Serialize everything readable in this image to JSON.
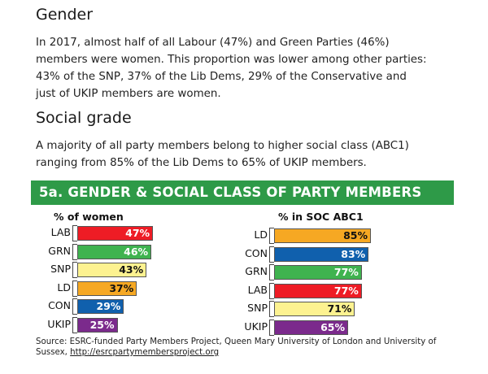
{
  "gender": {
    "heading": "Gender",
    "lines": [
      "In 2017, almost half of all Labour (47%) and Green Parties (46%)",
      "members were women. This proportion was lower among other parties:",
      "43% of the SNP, 37% of the Lib Dems, 29% of the Conservative and",
      "just  of UKIP members are women."
    ]
  },
  "social": {
    "heading": "Social grade",
    "lines": [
      "A majority of all party members belong to higher social class (ABC1)",
      "ranging from 85% of the Lib Dems to 65% of UKIP members."
    ]
  },
  "banner": "5a. GENDER & SOCIAL CLASS OF PARTY MEMBERS",
  "chart_data": [
    {
      "type": "bar",
      "orientation": "horizontal",
      "title": "% of women",
      "categories": [
        "LAB",
        "GRN",
        "SNP",
        "LD",
        "CON",
        "UKIP"
      ],
      "values": [
        47,
        46,
        43,
        37,
        29,
        25
      ],
      "value_labels": [
        "47%",
        "46%",
        "43%",
        "37%",
        "29%",
        "25%"
      ],
      "colors": [
        "#ee1c25",
        "#3fb34f",
        "#fdf290",
        "#f6a823",
        "#1060ad",
        "#7b2a8c"
      ],
      "label_colors": [
        "#ffffff",
        "#ffffff",
        "#111111",
        "#111111",
        "#ffffff",
        "#ffffff"
      ],
      "xlim": [
        0,
        50
      ],
      "grid": false
    },
    {
      "type": "bar",
      "orientation": "horizontal",
      "title": "% in SOC ABC1",
      "categories": [
        "LD",
        "CON",
        "GRN",
        "LAB",
        "SNP",
        "UKIP"
      ],
      "values": [
        85,
        83,
        77,
        77,
        71,
        65
      ],
      "value_labels": [
        "85%",
        "83%",
        "77%",
        "77%",
        "71%",
        "65%"
      ],
      "colors": [
        "#f6a823",
        "#1060ad",
        "#3fb34f",
        "#ee1c25",
        "#fdf290",
        "#7b2a8c"
      ],
      "label_colors": [
        "#111111",
        "#ffffff",
        "#ffffff",
        "#ffffff",
        "#111111",
        "#ffffff"
      ],
      "xlim": [
        0,
        90
      ],
      "grid": false
    }
  ],
  "source": {
    "line1": "Source: ESRC-funded Party Members Project, Queen Mary University of London and University of",
    "line2_prefix": "Sussex, ",
    "link": "http://esrcpartymembersproject.org"
  }
}
